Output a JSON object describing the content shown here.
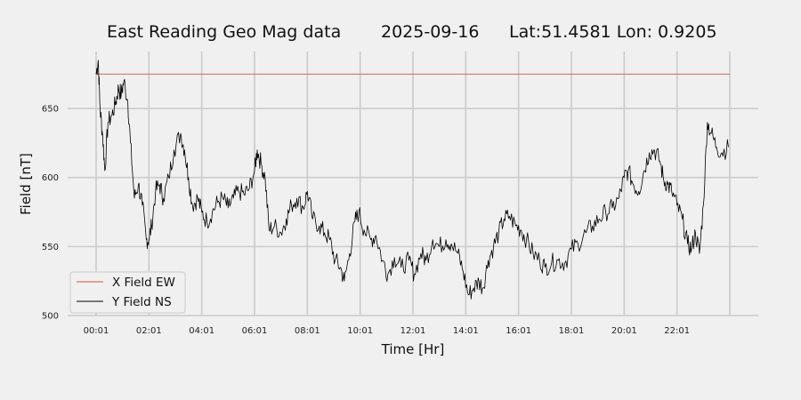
{
  "chart_data": {
    "type": "line",
    "title": {
      "name": "East Reading Geo Mag data",
      "date": "2025-09-16",
      "location": "Lat:51.4581  Lon: 0.9205"
    },
    "xlabel": "Time  [Hr]",
    "ylabel": "Field  [nT]",
    "x_ticks": [
      "00:01",
      "02:01",
      "04:01",
      "06:01",
      "08:01",
      "10:01",
      "12:01",
      "14:01",
      "16:01",
      "18:01",
      "20:01",
      "22:01"
    ],
    "x_range_hours": [
      0,
      24
    ],
    "y_ticks": [
      500,
      550,
      600,
      650
    ],
    "ylim": [
      500,
      690
    ],
    "grid": true,
    "legend_position": "bottom-left",
    "series": [
      {
        "name": "X Field EW",
        "color": "#d0504a",
        "points": [
          [
            0.0,
            675
          ],
          [
            24.0,
            675
          ]
        ]
      },
      {
        "name": "Y Field NS",
        "color": "#000000",
        "points": [
          [
            0.0,
            675
          ],
          [
            0.08,
            685
          ],
          [
            0.15,
            650
          ],
          [
            0.25,
            630
          ],
          [
            0.33,
            605
          ],
          [
            0.45,
            640
          ],
          [
            0.6,
            645
          ],
          [
            0.75,
            655
          ],
          [
            0.85,
            665
          ],
          [
            0.95,
            660
          ],
          [
            1.05,
            670
          ],
          [
            1.2,
            655
          ],
          [
            1.3,
            625
          ],
          [
            1.45,
            585
          ],
          [
            1.6,
            595
          ],
          [
            1.75,
            580
          ],
          [
            1.9,
            555
          ],
          [
            2.0,
            555
          ],
          [
            2.1,
            565
          ],
          [
            2.25,
            590
          ],
          [
            2.4,
            595
          ],
          [
            2.55,
            585
          ],
          [
            2.75,
            600
          ],
          [
            2.95,
            620
          ],
          [
            3.2,
            632
          ],
          [
            3.35,
            620
          ],
          [
            3.5,
            600
          ],
          [
            3.65,
            580
          ],
          [
            3.85,
            585
          ],
          [
            4.0,
            575
          ],
          [
            4.2,
            568
          ],
          [
            4.4,
            575
          ],
          [
            4.6,
            582
          ],
          [
            4.8,
            585
          ],
          [
            5.0,
            578
          ],
          [
            5.2,
            585
          ],
          [
            5.4,
            590
          ],
          [
            5.6,
            588
          ],
          [
            5.8,
            592
          ],
          [
            6.0,
            605
          ],
          [
            6.1,
            620
          ],
          [
            6.25,
            610
          ],
          [
            6.4,
            600
          ],
          [
            6.55,
            562
          ],
          [
            6.75,
            565
          ],
          [
            7.0,
            560
          ],
          [
            7.2,
            570
          ],
          [
            7.4,
            580
          ],
          [
            7.6,
            585
          ],
          [
            7.85,
            578
          ],
          [
            8.0,
            590
          ],
          [
            8.2,
            570
          ],
          [
            8.45,
            565
          ],
          [
            8.65,
            560
          ],
          [
            8.85,
            555
          ],
          [
            9.05,
            540
          ],
          [
            9.25,
            535
          ],
          [
            9.4,
            525
          ],
          [
            9.6,
            545
          ],
          [
            9.8,
            568
          ],
          [
            9.95,
            575
          ],
          [
            10.15,
            562
          ],
          [
            10.4,
            555
          ],
          [
            10.6,
            558
          ],
          [
            10.85,
            540
          ],
          [
            11.05,
            530
          ],
          [
            11.3,
            542
          ],
          [
            11.55,
            535
          ],
          [
            11.85,
            540
          ],
          [
            12.05,
            530
          ],
          [
            12.3,
            545
          ],
          [
            12.5,
            540
          ],
          [
            12.75,
            555
          ],
          [
            13.0,
            550
          ],
          [
            13.25,
            555
          ],
          [
            13.45,
            552
          ],
          [
            13.7,
            545
          ],
          [
            13.9,
            532
          ],
          [
            14.1,
            515
          ],
          [
            14.3,
            520
          ],
          [
            14.5,
            525
          ],
          [
            14.65,
            520
          ],
          [
            14.85,
            540
          ],
          [
            15.05,
            550
          ],
          [
            15.25,
            560
          ],
          [
            15.45,
            570
          ],
          [
            15.65,
            572
          ],
          [
            15.9,
            565
          ],
          [
            16.1,
            562
          ],
          [
            16.3,
            555
          ],
          [
            16.55,
            545
          ],
          [
            16.8,
            540
          ],
          [
            17.0,
            535
          ],
          [
            17.25,
            538
          ],
          [
            17.5,
            540
          ],
          [
            17.75,
            538
          ],
          [
            18.0,
            548
          ],
          [
            18.25,
            552
          ],
          [
            18.55,
            560
          ],
          [
            18.8,
            565
          ],
          [
            19.05,
            570
          ],
          [
            19.3,
            575
          ],
          [
            19.55,
            578
          ],
          [
            19.8,
            585
          ],
          [
            20.0,
            600
          ],
          [
            20.15,
            605
          ],
          [
            20.35,
            595
          ],
          [
            20.55,
            590
          ],
          [
            20.75,
            605
          ],
          [
            20.95,
            618
          ],
          [
            21.15,
            620
          ],
          [
            21.35,
            612
          ],
          [
            21.5,
            598
          ],
          [
            21.65,
            595
          ],
          [
            21.8,
            590
          ],
          [
            22.0,
            580
          ],
          [
            22.2,
            570
          ],
          [
            22.4,
            552
          ],
          [
            22.55,
            548
          ],
          [
            22.7,
            560
          ],
          [
            22.85,
            545
          ],
          [
            23.0,
            580
          ],
          [
            23.15,
            640
          ],
          [
            23.3,
            632
          ],
          [
            23.5,
            622
          ],
          [
            23.7,
            618
          ],
          [
            23.95,
            622
          ]
        ]
      }
    ]
  }
}
